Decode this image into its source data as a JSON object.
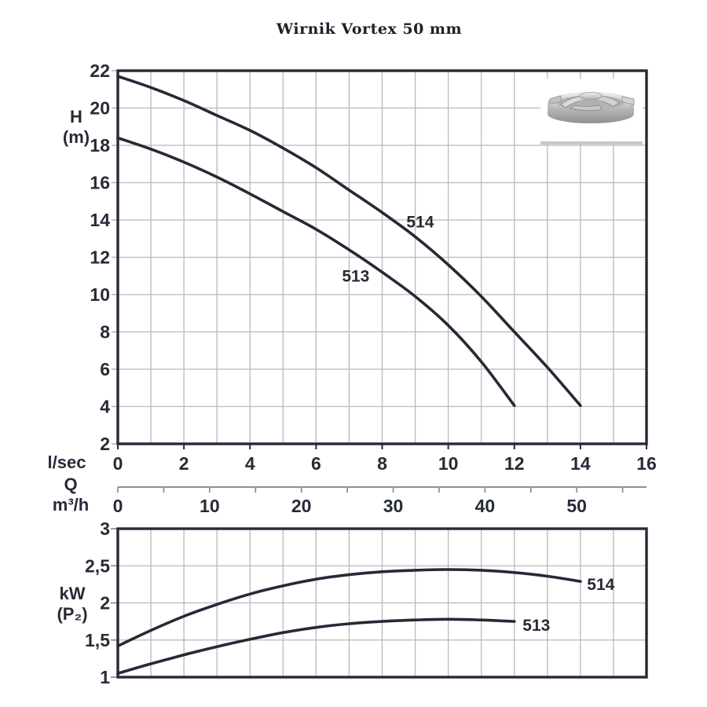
{
  "title": "Wirnik Vortex 50 mm",
  "colors": {
    "curve": "#252a36",
    "text": "#262b36",
    "grid": "#b7b9bb",
    "border": "#252a36",
    "secondary_axis": "#8e9296",
    "impeller_box_border": "#c5c8ca"
  },
  "impeller_icon": "vortex-impeller-image",
  "chart_data": [
    {
      "type": "line",
      "title": "Wirnik Vortex 50 mm",
      "xlabel": "l/sec",
      "ylabel": "H (m)",
      "grid": true,
      "legend_position": "inline-curve-labels",
      "x_axis": {
        "min": 0,
        "max": 16,
        "tick_step": 2,
        "minor_grid_step": 1,
        "tick_labels": [
          "0",
          "2",
          "4",
          "6",
          "8",
          "10",
          "12",
          "14",
          "16"
        ]
      },
      "x_axis_secondary": {
        "title_lines": [
          "Q",
          "m³/h"
        ],
        "m3h_per_lsec": 3.6,
        "tick_step_m3h": 5,
        "tick_max_m3h": 55,
        "label_step_m3h": 10,
        "tick_labels": [
          "0",
          "10",
          "20",
          "30",
          "40",
          "50"
        ]
      },
      "y_axis": {
        "title_lines": [
          "H",
          "(m)"
        ],
        "min": 2,
        "max": 22,
        "tick_step": 2,
        "grid_step": 2,
        "tick_labels": [
          "22",
          "20",
          "18",
          "16",
          "14",
          "12",
          "10",
          "8",
          "6",
          "4",
          "2"
        ]
      },
      "series": [
        {
          "name": "514",
          "points": [
            [
              0,
              21.7
            ],
            [
              1,
              21.1
            ],
            [
              2,
              20.4
            ],
            [
              3,
              19.6
            ],
            [
              4,
              18.8
            ],
            [
              5,
              17.85
            ],
            [
              6,
              16.8
            ],
            [
              7,
              15.6
            ],
            [
              8,
              14.4
            ],
            [
              9,
              13.1
            ],
            [
              10,
              11.6
            ],
            [
              11,
              9.9
            ],
            [
              12,
              8.0
            ],
            [
              13,
              6.1
            ],
            [
              14,
              4.05
            ]
          ]
        },
        {
          "name": "513",
          "points": [
            [
              0,
              18.4
            ],
            [
              1,
              17.8
            ],
            [
              2,
              17.1
            ],
            [
              3,
              16.3
            ],
            [
              4,
              15.4
            ],
            [
              5,
              14.45
            ],
            [
              6,
              13.5
            ],
            [
              7,
              12.4
            ],
            [
              8,
              11.2
            ],
            [
              9,
              9.9
            ],
            [
              10,
              8.35
            ],
            [
              11,
              6.4
            ],
            [
              12,
              4.05
            ]
          ]
        }
      ],
      "annotations": [
        {
          "text": "514",
          "x": 9.15,
          "y": 13.9,
          "anchor": "middle"
        },
        {
          "text": "513",
          "x": 7.2,
          "y": 11.0,
          "anchor": "middle"
        }
      ]
    },
    {
      "type": "line",
      "title": "",
      "xlabel": "",
      "ylabel": "kW (P₂)",
      "grid": true,
      "x_axis": {
        "min": 0,
        "max": 16,
        "minor_grid_step": 1
      },
      "y_axis": {
        "title_lines": [
          "kW",
          "(P₂)"
        ],
        "min": 1,
        "max": 3,
        "tick_step": 0.5,
        "grid_step": 0.5,
        "tick_labels": [
          "3",
          "2,5",
          "2",
          "1,5",
          "1"
        ]
      },
      "series": [
        {
          "name": "514",
          "points": [
            [
              0,
              1.42
            ],
            [
              1,
              1.63
            ],
            [
              2,
              1.82
            ],
            [
              3,
              1.98
            ],
            [
              4,
              2.12
            ],
            [
              5,
              2.23
            ],
            [
              6,
              2.32
            ],
            [
              7,
              2.38
            ],
            [
              8,
              2.42
            ],
            [
              9,
              2.44
            ],
            [
              10,
              2.45
            ],
            [
              11,
              2.44
            ],
            [
              12,
              2.41
            ],
            [
              13,
              2.36
            ],
            [
              14,
              2.29
            ]
          ]
        },
        {
          "name": "513",
          "points": [
            [
              0,
              1.05
            ],
            [
              1,
              1.18
            ],
            [
              2,
              1.3
            ],
            [
              3,
              1.41
            ],
            [
              4,
              1.51
            ],
            [
              5,
              1.6
            ],
            [
              6,
              1.67
            ],
            [
              7,
              1.72
            ],
            [
              8,
              1.75
            ],
            [
              9,
              1.77
            ],
            [
              10,
              1.78
            ],
            [
              11,
              1.77
            ],
            [
              12,
              1.75
            ]
          ]
        }
      ],
      "annotations": [
        {
          "text": "514",
          "x": 14.2,
          "y": 2.25,
          "anchor": "start"
        },
        {
          "text": "513",
          "x": 12.25,
          "y": 1.7,
          "anchor": "start"
        }
      ]
    }
  ]
}
